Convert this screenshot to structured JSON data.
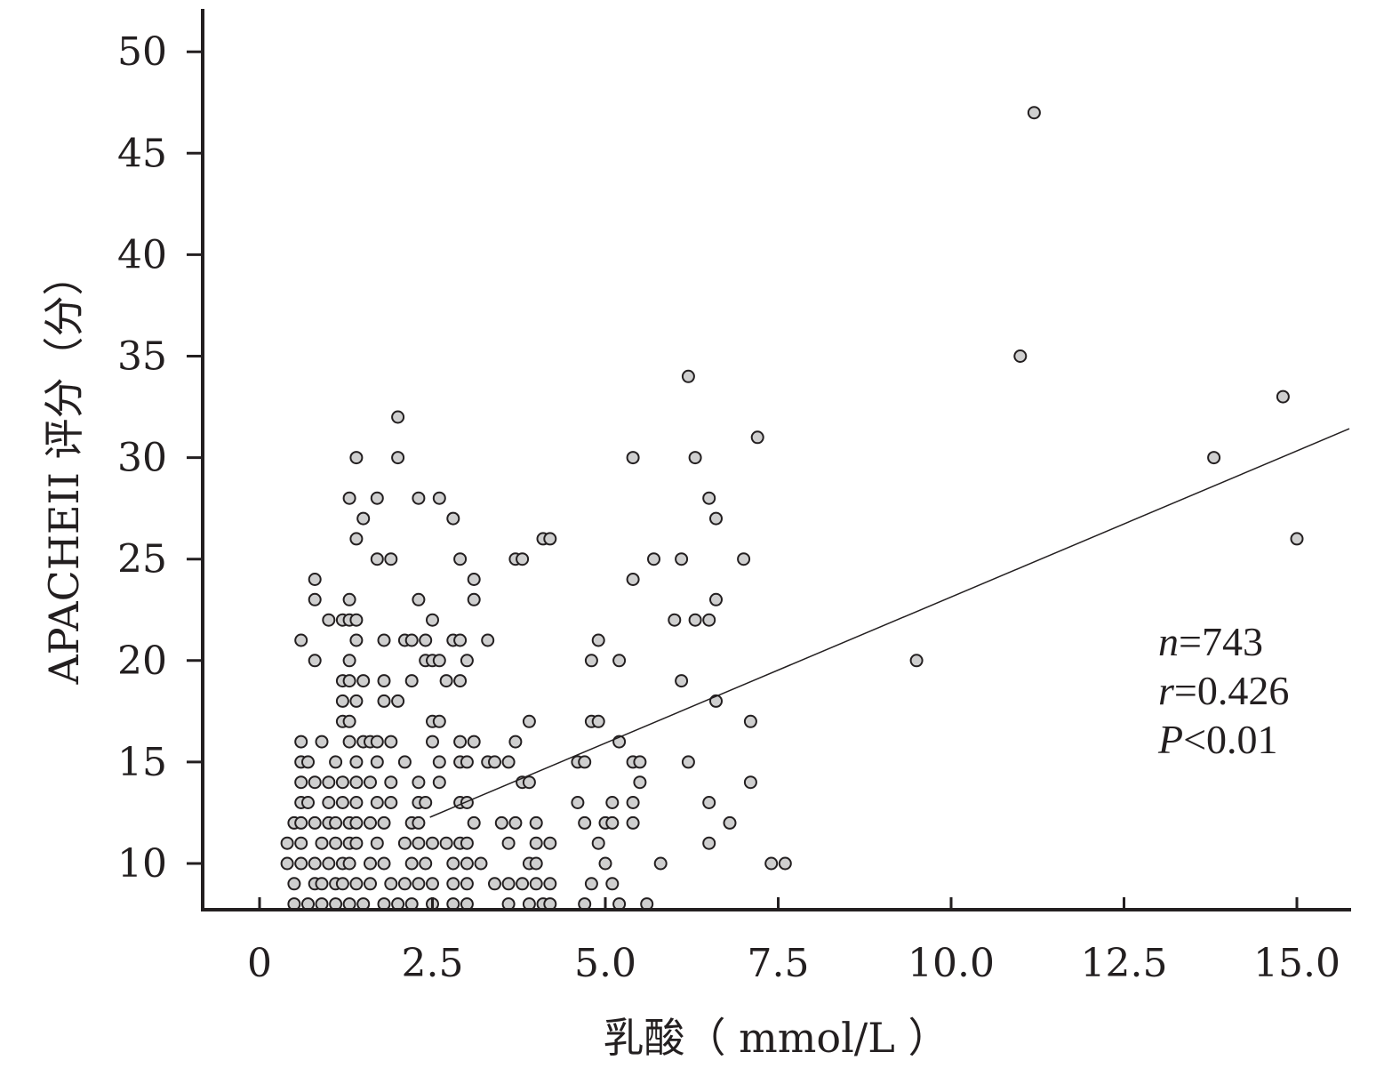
{
  "chart_data": {
    "type": "scatter",
    "xlabel": "乳酸（ mmol/L ）",
    "ylabel": "APACHEII 评分（分）",
    "xlim": [
      -0.6,
      15.6
    ],
    "ylim": [
      7.7,
      52
    ],
    "x_ticks": [
      "0",
      "2.5",
      "5.0",
      "7.5",
      "10.0",
      "12.5",
      "15.0"
    ],
    "y_ticks": [
      "10",
      "15",
      "20",
      "25",
      "30",
      "35",
      "40",
      "45",
      "50"
    ],
    "grid": false,
    "marker_color": "#cfcfcf",
    "marker_edge": "#231f20",
    "annotation": {
      "n_label": "n",
      "n_value": "=743",
      "r_label": "r",
      "r_value": "=0.426",
      "p_label": "P",
      "p_value": "<0.01"
    },
    "regression_line": {
      "slope": 1.44,
      "intercept": 8.73
    },
    "points": [
      [
        2.0,
        32
      ],
      [
        1.4,
        30
      ],
      [
        2.0,
        30
      ],
      [
        1.3,
        28
      ],
      [
        1.7,
        28
      ],
      [
        2.3,
        28
      ],
      [
        2.6,
        28
      ],
      [
        1.5,
        27
      ],
      [
        2.8,
        27
      ],
      [
        1.4,
        26
      ],
      [
        1.7,
        25
      ],
      [
        1.9,
        25
      ],
      [
        2.9,
        25
      ],
      [
        0.8,
        24
      ],
      [
        3.1,
        24
      ],
      [
        0.8,
        23
      ],
      [
        1.3,
        23
      ],
      [
        2.3,
        23
      ],
      [
        3.1,
        23
      ],
      [
        1.0,
        22
      ],
      [
        1.2,
        22
      ],
      [
        1.3,
        22
      ],
      [
        1.4,
        22
      ],
      [
        2.5,
        22
      ],
      [
        0.6,
        21
      ],
      [
        1.4,
        21
      ],
      [
        1.8,
        21
      ],
      [
        2.1,
        21
      ],
      [
        2.2,
        21
      ],
      [
        2.4,
        21
      ],
      [
        2.8,
        21
      ],
      [
        2.9,
        21
      ],
      [
        3.3,
        21
      ],
      [
        0.8,
        20
      ],
      [
        1.3,
        20
      ],
      [
        2.4,
        20
      ],
      [
        2.5,
        20
      ],
      [
        2.6,
        20
      ],
      [
        3.0,
        20
      ],
      [
        1.2,
        19
      ],
      [
        1.3,
        19
      ],
      [
        1.5,
        19
      ],
      [
        1.8,
        19
      ],
      [
        2.2,
        19
      ],
      [
        2.7,
        19
      ],
      [
        2.9,
        19
      ],
      [
        1.2,
        18
      ],
      [
        1.4,
        18
      ],
      [
        1.8,
        18
      ],
      [
        2.0,
        18
      ],
      [
        1.2,
        17
      ],
      [
        1.3,
        17
      ],
      [
        2.5,
        17
      ],
      [
        2.6,
        17
      ],
      [
        0.6,
        16
      ],
      [
        0.9,
        16
      ],
      [
        1.3,
        16
      ],
      [
        1.5,
        16
      ],
      [
        1.6,
        16
      ],
      [
        1.7,
        16
      ],
      [
        1.9,
        16
      ],
      [
        2.5,
        16
      ],
      [
        2.9,
        16
      ],
      [
        3.1,
        16
      ],
      [
        0.6,
        15
      ],
      [
        0.7,
        15
      ],
      [
        1.1,
        15
      ],
      [
        1.4,
        15
      ],
      [
        1.7,
        15
      ],
      [
        2.1,
        15
      ],
      [
        2.6,
        15
      ],
      [
        2.9,
        15
      ],
      [
        3.0,
        15
      ],
      [
        3.3,
        15
      ],
      [
        0.6,
        14
      ],
      [
        0.8,
        14
      ],
      [
        1.0,
        14
      ],
      [
        1.2,
        14
      ],
      [
        1.4,
        14
      ],
      [
        1.6,
        14
      ],
      [
        1.9,
        14
      ],
      [
        2.3,
        14
      ],
      [
        2.6,
        14
      ],
      [
        0.6,
        13
      ],
      [
        0.7,
        13
      ],
      [
        1.0,
        13
      ],
      [
        1.2,
        13
      ],
      [
        1.4,
        13
      ],
      [
        1.7,
        13
      ],
      [
        1.9,
        13
      ],
      [
        2.3,
        13
      ],
      [
        2.4,
        13
      ],
      [
        2.9,
        13
      ],
      [
        3.0,
        13
      ],
      [
        0.5,
        12
      ],
      [
        0.6,
        12
      ],
      [
        0.8,
        12
      ],
      [
        1.0,
        12
      ],
      [
        1.1,
        12
      ],
      [
        1.3,
        12
      ],
      [
        1.4,
        12
      ],
      [
        1.6,
        12
      ],
      [
        1.8,
        12
      ],
      [
        2.2,
        12
      ],
      [
        2.3,
        12
      ],
      [
        3.1,
        12
      ],
      [
        0.4,
        11
      ],
      [
        0.6,
        11
      ],
      [
        0.9,
        11
      ],
      [
        1.1,
        11
      ],
      [
        1.3,
        11
      ],
      [
        1.4,
        11
      ],
      [
        1.7,
        11
      ],
      [
        2.1,
        11
      ],
      [
        2.3,
        11
      ],
      [
        2.5,
        11
      ],
      [
        2.7,
        11
      ],
      [
        2.9,
        11
      ],
      [
        3.0,
        11
      ],
      [
        0.4,
        10
      ],
      [
        0.6,
        10
      ],
      [
        0.8,
        10
      ],
      [
        1.0,
        10
      ],
      [
        1.2,
        10
      ],
      [
        1.3,
        10
      ],
      [
        1.6,
        10
      ],
      [
        1.8,
        10
      ],
      [
        2.2,
        10
      ],
      [
        2.4,
        10
      ],
      [
        2.8,
        10
      ],
      [
        3.0,
        10
      ],
      [
        3.2,
        10
      ],
      [
        0.5,
        9
      ],
      [
        0.8,
        9
      ],
      [
        0.9,
        9
      ],
      [
        1.1,
        9
      ],
      [
        1.2,
        9
      ],
      [
        1.4,
        9
      ],
      [
        1.6,
        9
      ],
      [
        1.9,
        9
      ],
      [
        2.1,
        9
      ],
      [
        2.3,
        9
      ],
      [
        2.5,
        9
      ],
      [
        2.8,
        9
      ],
      [
        3.0,
        9
      ],
      [
        0.5,
        8
      ],
      [
        0.7,
        8
      ],
      [
        0.9,
        8
      ],
      [
        1.1,
        8
      ],
      [
        1.3,
        8
      ],
      [
        1.5,
        8
      ],
      [
        1.8,
        8
      ],
      [
        2.0,
        8
      ],
      [
        2.2,
        8
      ],
      [
        2.5,
        8
      ],
      [
        2.8,
        8
      ],
      [
        3.0,
        8
      ],
      [
        4.1,
        26
      ],
      [
        4.2,
        26
      ],
      [
        3.7,
        25
      ],
      [
        3.8,
        25
      ],
      [
        3.9,
        17
      ],
      [
        3.7,
        16
      ],
      [
        3.4,
        15
      ],
      [
        3.6,
        15
      ],
      [
        3.8,
        14
      ],
      [
        3.9,
        14
      ],
      [
        3.5,
        12
      ],
      [
        3.7,
        12
      ],
      [
        4.0,
        12
      ],
      [
        3.6,
        11
      ],
      [
        4.0,
        11
      ],
      [
        4.2,
        11
      ],
      [
        3.9,
        10
      ],
      [
        4.0,
        10
      ],
      [
        3.4,
        9
      ],
      [
        3.6,
        9
      ],
      [
        3.8,
        9
      ],
      [
        4.0,
        9
      ],
      [
        4.2,
        9
      ],
      [
        3.6,
        8
      ],
      [
        3.9,
        8
      ],
      [
        4.1,
        8
      ],
      [
        4.2,
        8
      ],
      [
        5.4,
        30
      ],
      [
        5.7,
        25
      ],
      [
        5.4,
        24
      ],
      [
        4.9,
        21
      ],
      [
        4.8,
        20
      ],
      [
        5.2,
        20
      ],
      [
        4.8,
        17
      ],
      [
        4.9,
        17
      ],
      [
        5.2,
        16
      ],
      [
        4.6,
        15
      ],
      [
        4.7,
        15
      ],
      [
        5.4,
        15
      ],
      [
        5.5,
        15
      ],
      [
        5.5,
        14
      ],
      [
        4.6,
        13
      ],
      [
        5.1,
        13
      ],
      [
        5.4,
        13
      ],
      [
        4.7,
        12
      ],
      [
        5.0,
        12
      ],
      [
        5.1,
        12
      ],
      [
        5.4,
        12
      ],
      [
        4.9,
        11
      ],
      [
        5.0,
        10
      ],
      [
        4.8,
        9
      ],
      [
        5.1,
        9
      ],
      [
        4.7,
        8
      ],
      [
        5.2,
        8
      ],
      [
        5.6,
        8
      ],
      [
        6.2,
        34
      ],
      [
        6.3,
        30
      ],
      [
        7.2,
        31
      ],
      [
        6.5,
        28
      ],
      [
        6.6,
        27
      ],
      [
        6.1,
        25
      ],
      [
        7.0,
        25
      ],
      [
        6.6,
        23
      ],
      [
        6.0,
        22
      ],
      [
        6.3,
        22
      ],
      [
        6.5,
        22
      ],
      [
        6.1,
        19
      ],
      [
        6.6,
        18
      ],
      [
        7.1,
        17
      ],
      [
        6.2,
        15
      ],
      [
        7.1,
        14
      ],
      [
        6.5,
        13
      ],
      [
        6.8,
        12
      ],
      [
        6.5,
        11
      ],
      [
        5.8,
        10
      ],
      [
        7.4,
        10
      ],
      [
        7.6,
        10
      ],
      [
        9.5,
        20
      ],
      [
        11.2,
        47
      ],
      [
        11.0,
        35
      ],
      [
        13.8,
        30
      ],
      [
        14.8,
        33
      ],
      [
        15.0,
        26
      ]
    ]
  }
}
